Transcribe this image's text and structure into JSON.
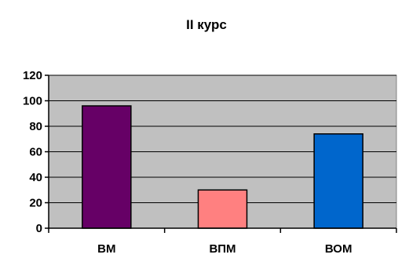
{
  "chart_data": {
    "type": "bar",
    "title": "II курс",
    "xlabel": "",
    "ylabel": "",
    "categories": [
      "ВМ",
      "ВПМ",
      "ВОМ"
    ],
    "values": [
      96,
      30,
      74
    ],
    "bar_colors": [
      "#660066",
      "#ff8080",
      "#0066cc"
    ],
    "ylim": [
      0,
      120
    ],
    "yticks": [
      0,
      20,
      40,
      60,
      80,
      100,
      120
    ],
    "grid": true,
    "legend": "none",
    "plot_background": "#c0c0c0"
  }
}
